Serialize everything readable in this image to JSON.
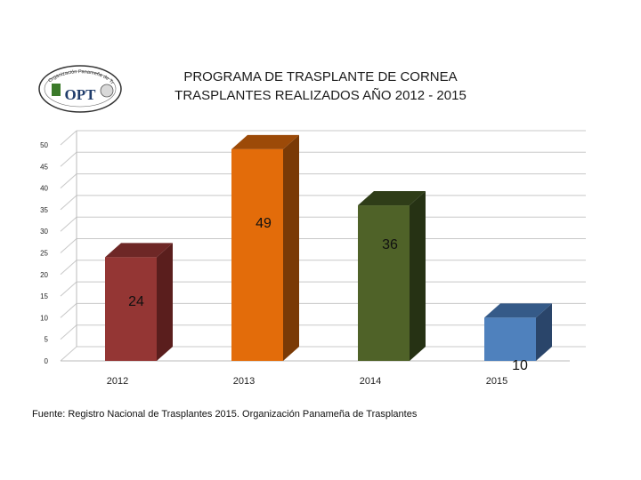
{
  "logo": {
    "arc_text": "Organización Panameña de Trasplantes",
    "acronym": "OPT"
  },
  "chart_data": {
    "type": "bar",
    "title": "PROGRAMA DE TRASPLANTE DE CORNEA",
    "subtitle": "TRASPLANTES REALIZADOS AÑO 2012 - 2015",
    "categories": [
      "2012",
      "2013",
      "2014",
      "2015"
    ],
    "values": [
      24,
      49,
      36,
      10
    ],
    "data_labels": [
      "24",
      "49",
      "36",
      "10"
    ],
    "ylim": [
      0,
      50
    ],
    "yticks": [
      "0",
      "5",
      "10",
      "15",
      "20",
      "25",
      "30",
      "35",
      "40",
      "45",
      "50"
    ],
    "grid": true,
    "three_d": true,
    "colors": [
      {
        "front": "#943634",
        "side": "#5a1e1d",
        "top": "#6e2726"
      },
      {
        "front": "#e36c0a",
        "side": "#7a3a06",
        "top": "#9c4a08"
      },
      {
        "front": "#4f6228",
        "side": "#263214",
        "top": "#2f3d18"
      },
      {
        "front": "#4f81bd",
        "side": "#2a456a",
        "top": "#355a88"
      }
    ]
  },
  "source": "Fuente: Registro Nacional de Trasplantes 2015.  Organización Panameña de Trasplantes"
}
